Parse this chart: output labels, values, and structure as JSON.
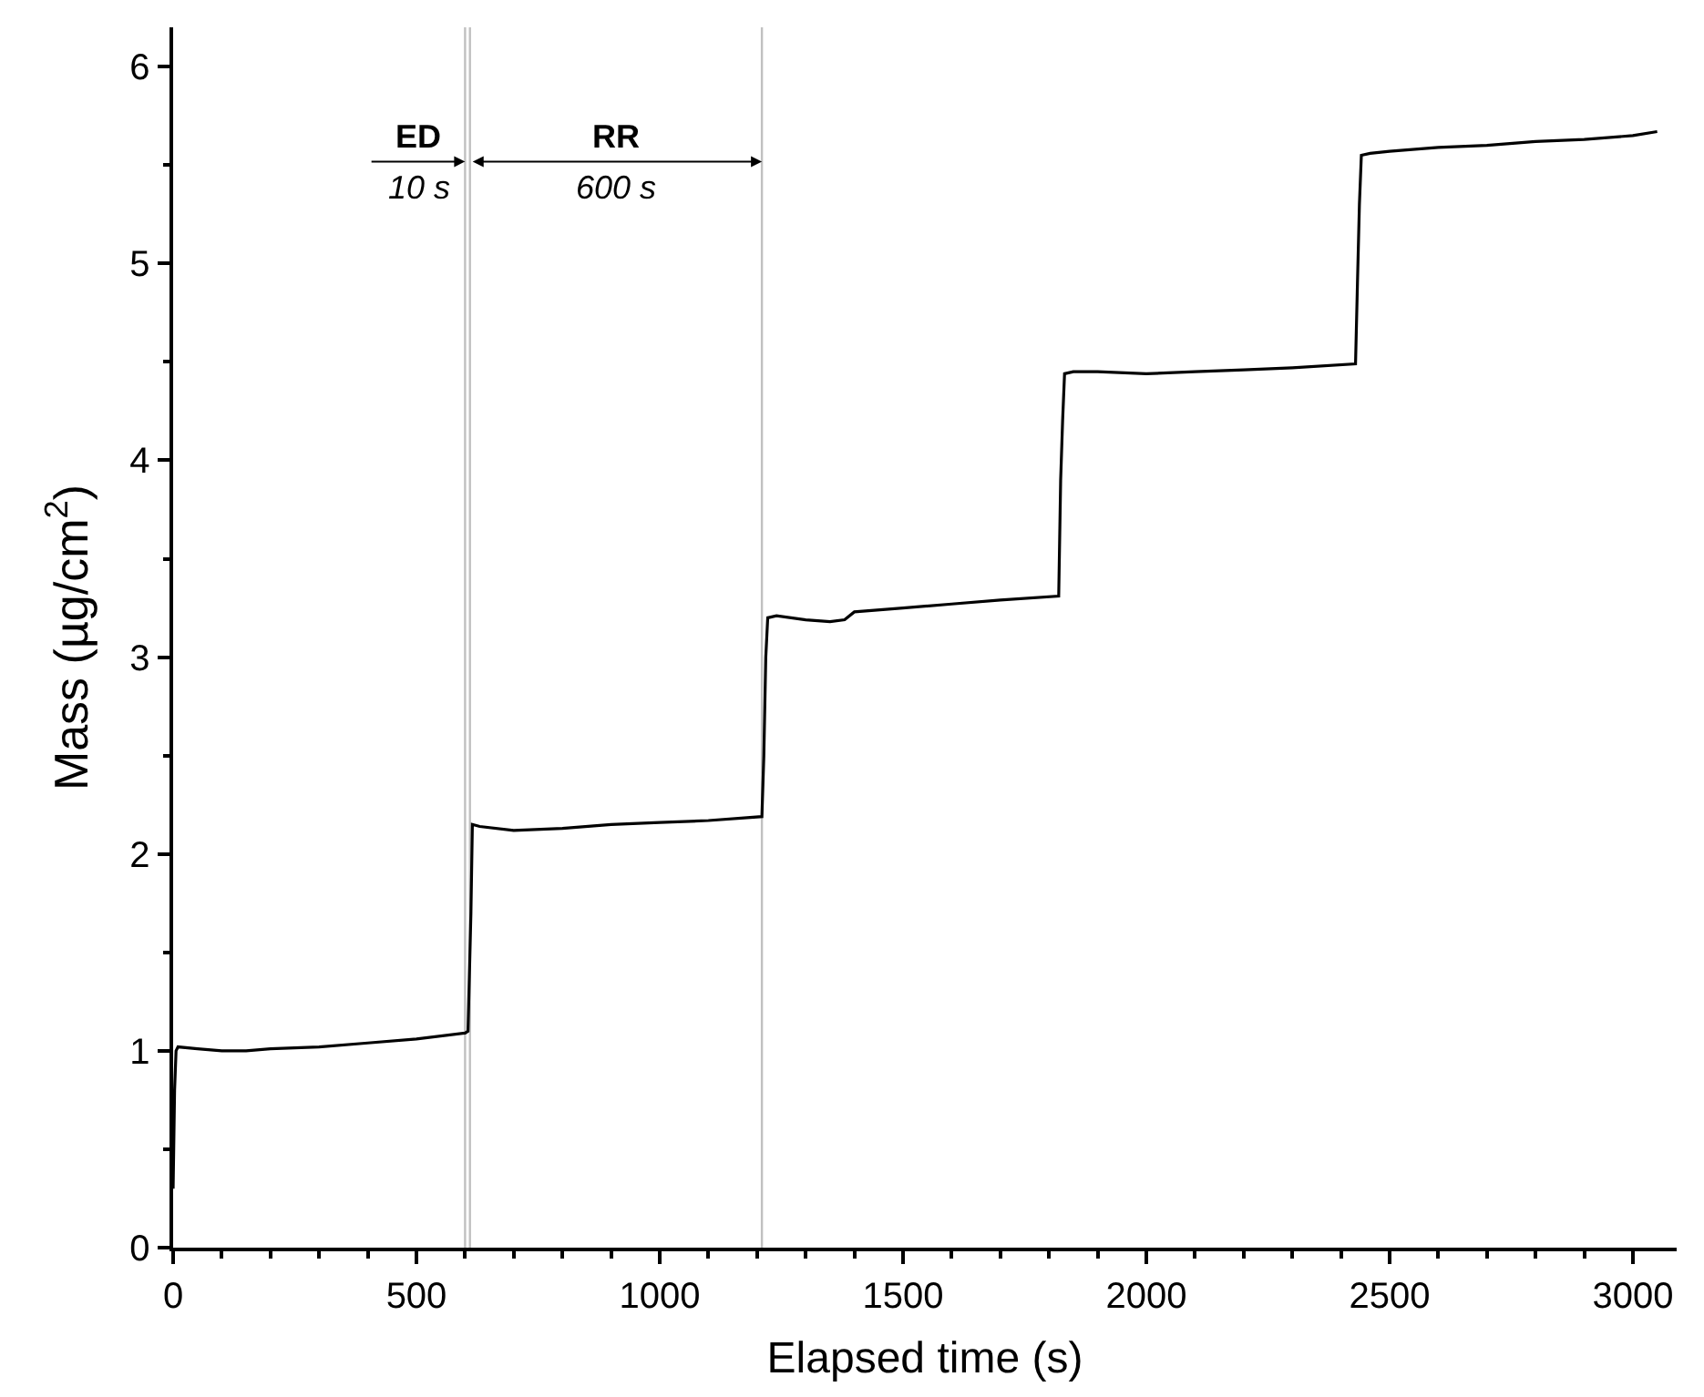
{
  "chart_data": {
    "type": "line",
    "xlabel": "Elapsed time (s)",
    "ylabel": "Mass (µg/cm$^{2}$)",
    "x": [
      0,
      3,
      6,
      10,
      50,
      100,
      150,
      200,
      300,
      400,
      500,
      600,
      606,
      612,
      615,
      630,
      700,
      800,
      900,
      1000,
      1100,
      1210,
      1214,
      1218,
      1222,
      1240,
      1300,
      1350,
      1380,
      1400,
      1500,
      1600,
      1700,
      1820,
      1824,
      1828,
      1832,
      1850,
      1900,
      2000,
      2100,
      2200,
      2300,
      2430,
      2434,
      2438,
      2442,
      2460,
      2500,
      2600,
      2700,
      2800,
      2900,
      3000,
      3050
    ],
    "series": [
      {
        "color": "#000000",
        "values": [
          0.3,
          0.8,
          1.0,
          1.02,
          1.01,
          1.0,
          1.0,
          1.01,
          1.02,
          1.04,
          1.06,
          1.09,
          1.1,
          1.7,
          2.15,
          2.14,
          2.12,
          2.13,
          2.15,
          2.16,
          2.17,
          2.19,
          2.5,
          3.0,
          3.2,
          3.21,
          3.19,
          3.18,
          3.19,
          3.23,
          3.25,
          3.27,
          3.29,
          3.31,
          3.9,
          4.2,
          4.44,
          4.45,
          4.45,
          4.44,
          4.45,
          4.46,
          4.47,
          4.49,
          4.9,
          5.3,
          5.55,
          5.56,
          5.57,
          5.59,
          5.6,
          5.62,
          5.63,
          5.65,
          5.67
        ]
      }
    ],
    "xlim": [
      0,
      3090
    ],
    "xticks": [
      0,
      500,
      1000,
      1500,
      2000,
      2500,
      3000
    ],
    "ylim": [
      0,
      6.2
    ],
    "yticks": [
      0,
      1,
      2,
      3,
      4,
      5,
      6
    ],
    "grid": false,
    "marker": "none",
    "line_style": "solid",
    "ref_lines": [
      {
        "axis": "x",
        "value": 600,
        "color": "#c0c0c0"
      },
      {
        "axis": "x",
        "value": 610,
        "color": "#c0c0c0"
      },
      {
        "axis": "x",
        "value": 1210,
        "color": "#c0c0c0"
      }
    ],
    "annotations": [
      "ED",
      "10 s",
      "RR",
      "600 s"
    ]
  }
}
